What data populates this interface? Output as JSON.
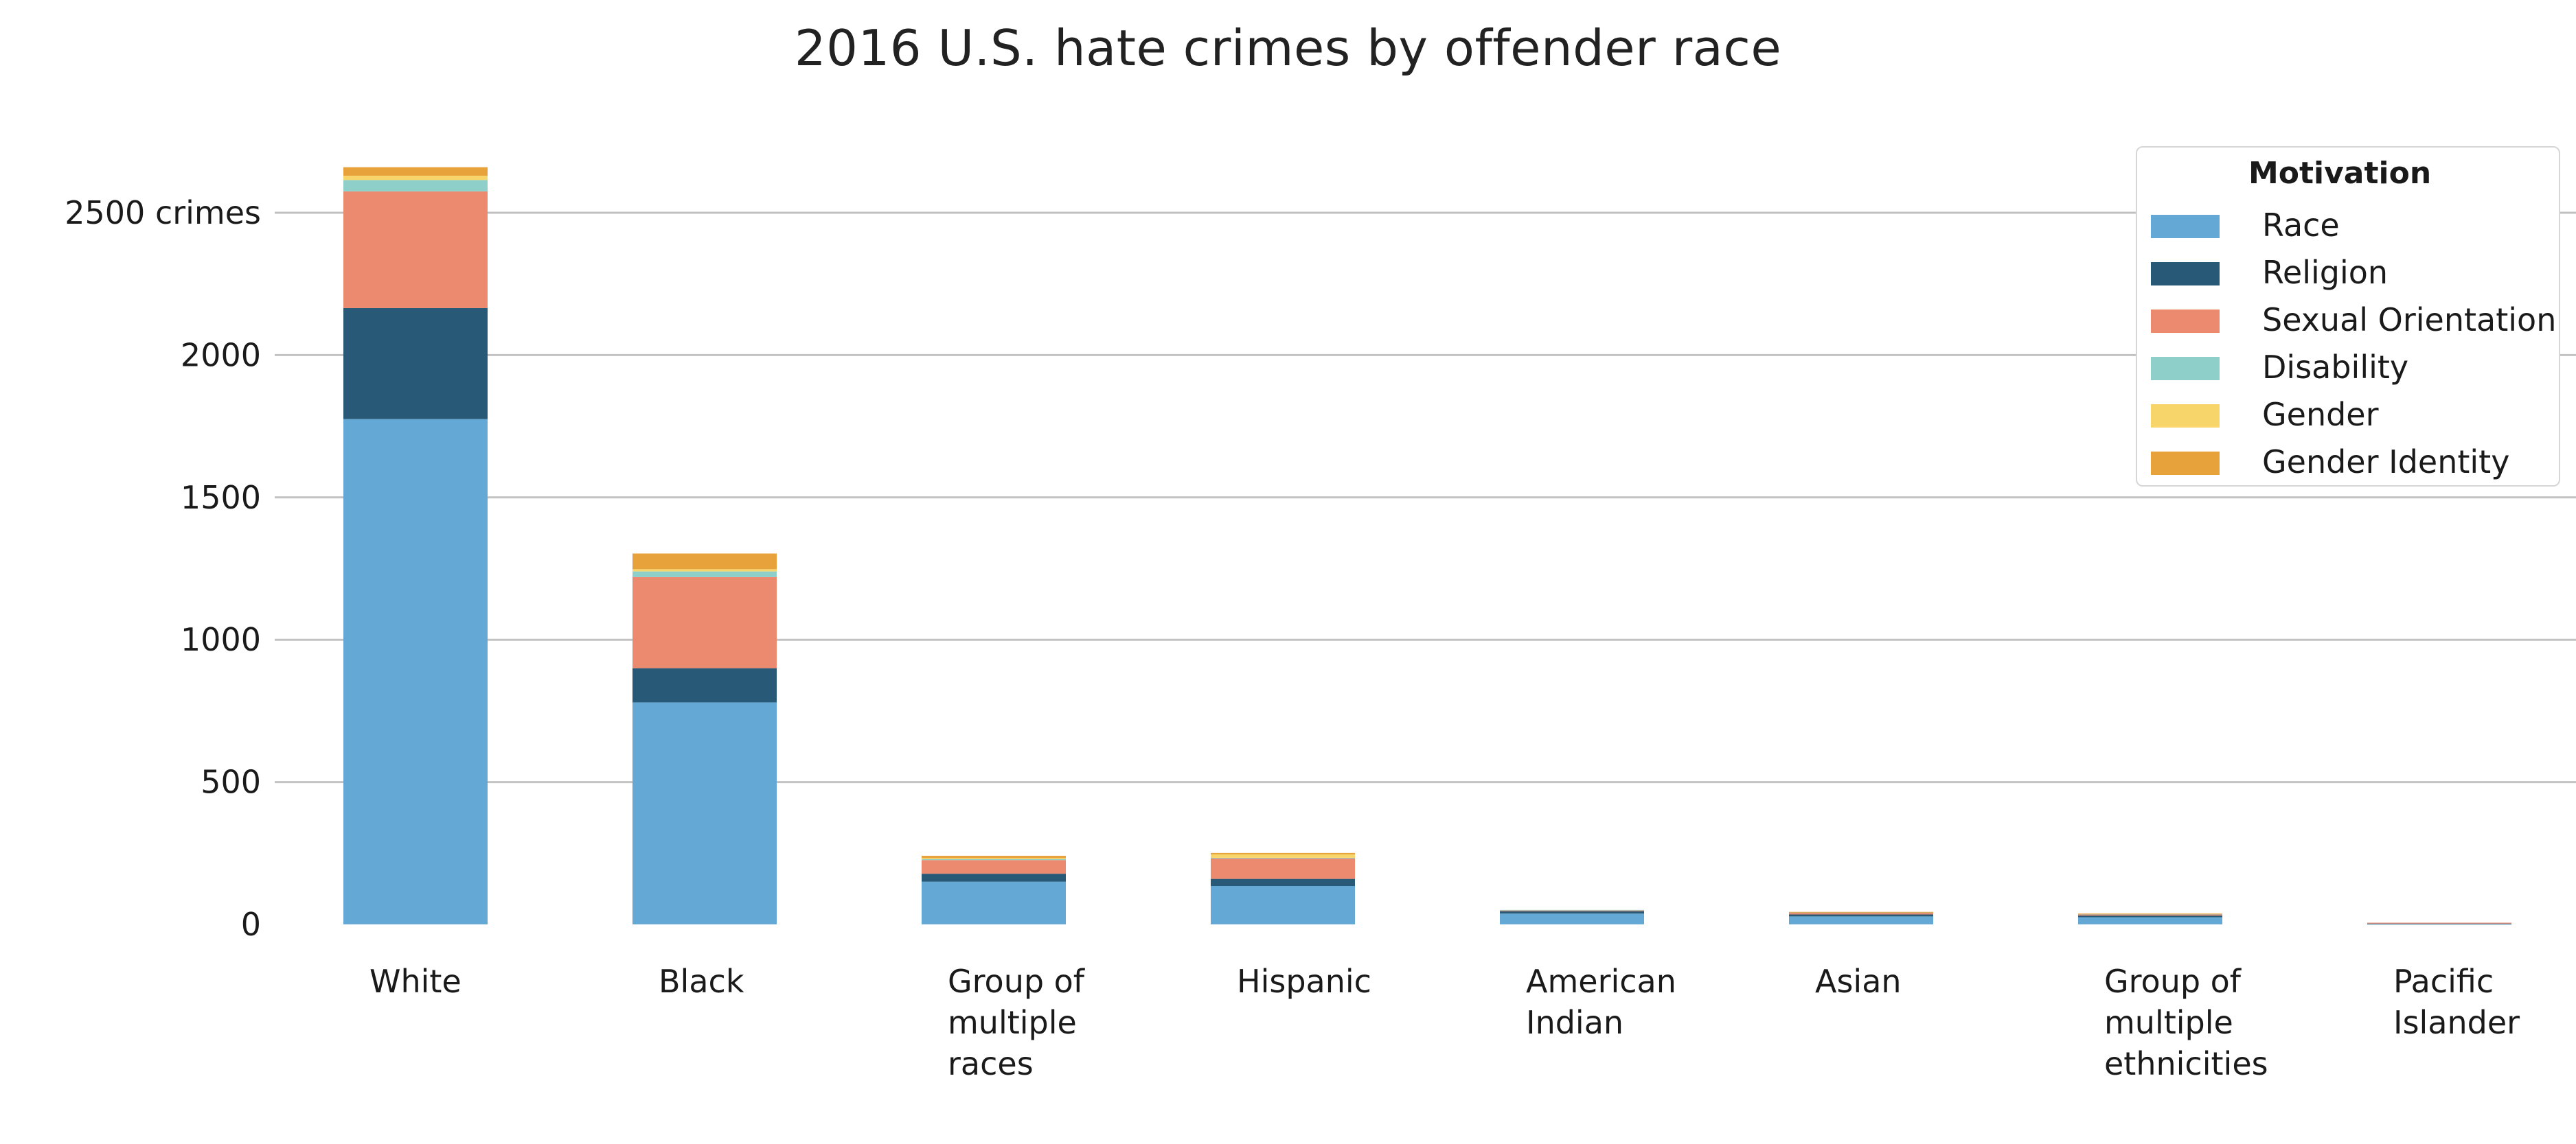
{
  "chart_data": {
    "type": "bar",
    "stacked": true,
    "title": "2016 U.S. hate crimes by offender race",
    "xlabel": "",
    "ylabel": "",
    "ylim": [
      0,
      2700
    ],
    "yticks": [
      0,
      500,
      1000,
      1500,
      2000,
      2500
    ],
    "ytick_labels": [
      "0",
      "500",
      "1000",
      "1500",
      "2000",
      "2500 crimes"
    ],
    "grid": true,
    "legend_title": "Motivation",
    "legend_position": "top-right",
    "categories": [
      [
        "White"
      ],
      [
        "Black"
      ],
      [
        "Group of",
        "multiple",
        "races"
      ],
      [
        "Hispanic"
      ],
      [
        "American",
        "Indian"
      ],
      [
        "Asian"
      ],
      [
        "Group of",
        "multiple",
        "ethnicities"
      ],
      [
        "Pacific",
        "Islander"
      ]
    ],
    "series": [
      {
        "name": "Race",
        "color": "#64a8d5",
        "values": [
          1775,
          780,
          150,
          135,
          38,
          28,
          25,
          2
        ]
      },
      {
        "name": "Religion",
        "color": "#285a78",
        "values": [
          390,
          120,
          28,
          25,
          8,
          7,
          6,
          1
        ]
      },
      {
        "name": "Sexual Orientation",
        "color": "#ec8a70",
        "values": [
          410,
          320,
          48,
          72,
          4,
          7,
          5,
          3
        ]
      },
      {
        "name": "Disability",
        "color": "#8ecfc9",
        "values": [
          40,
          20,
          3,
          2,
          1,
          1,
          1,
          0
        ]
      },
      {
        "name": "Gender",
        "color": "#f7d56b",
        "values": [
          15,
          8,
          4,
          12,
          0,
          0,
          0,
          0
        ]
      },
      {
        "name": "Gender Identity",
        "color": "#e8a23c",
        "values": [
          30,
          55,
          8,
          5,
          0,
          1,
          1,
          0
        ]
      }
    ]
  }
}
